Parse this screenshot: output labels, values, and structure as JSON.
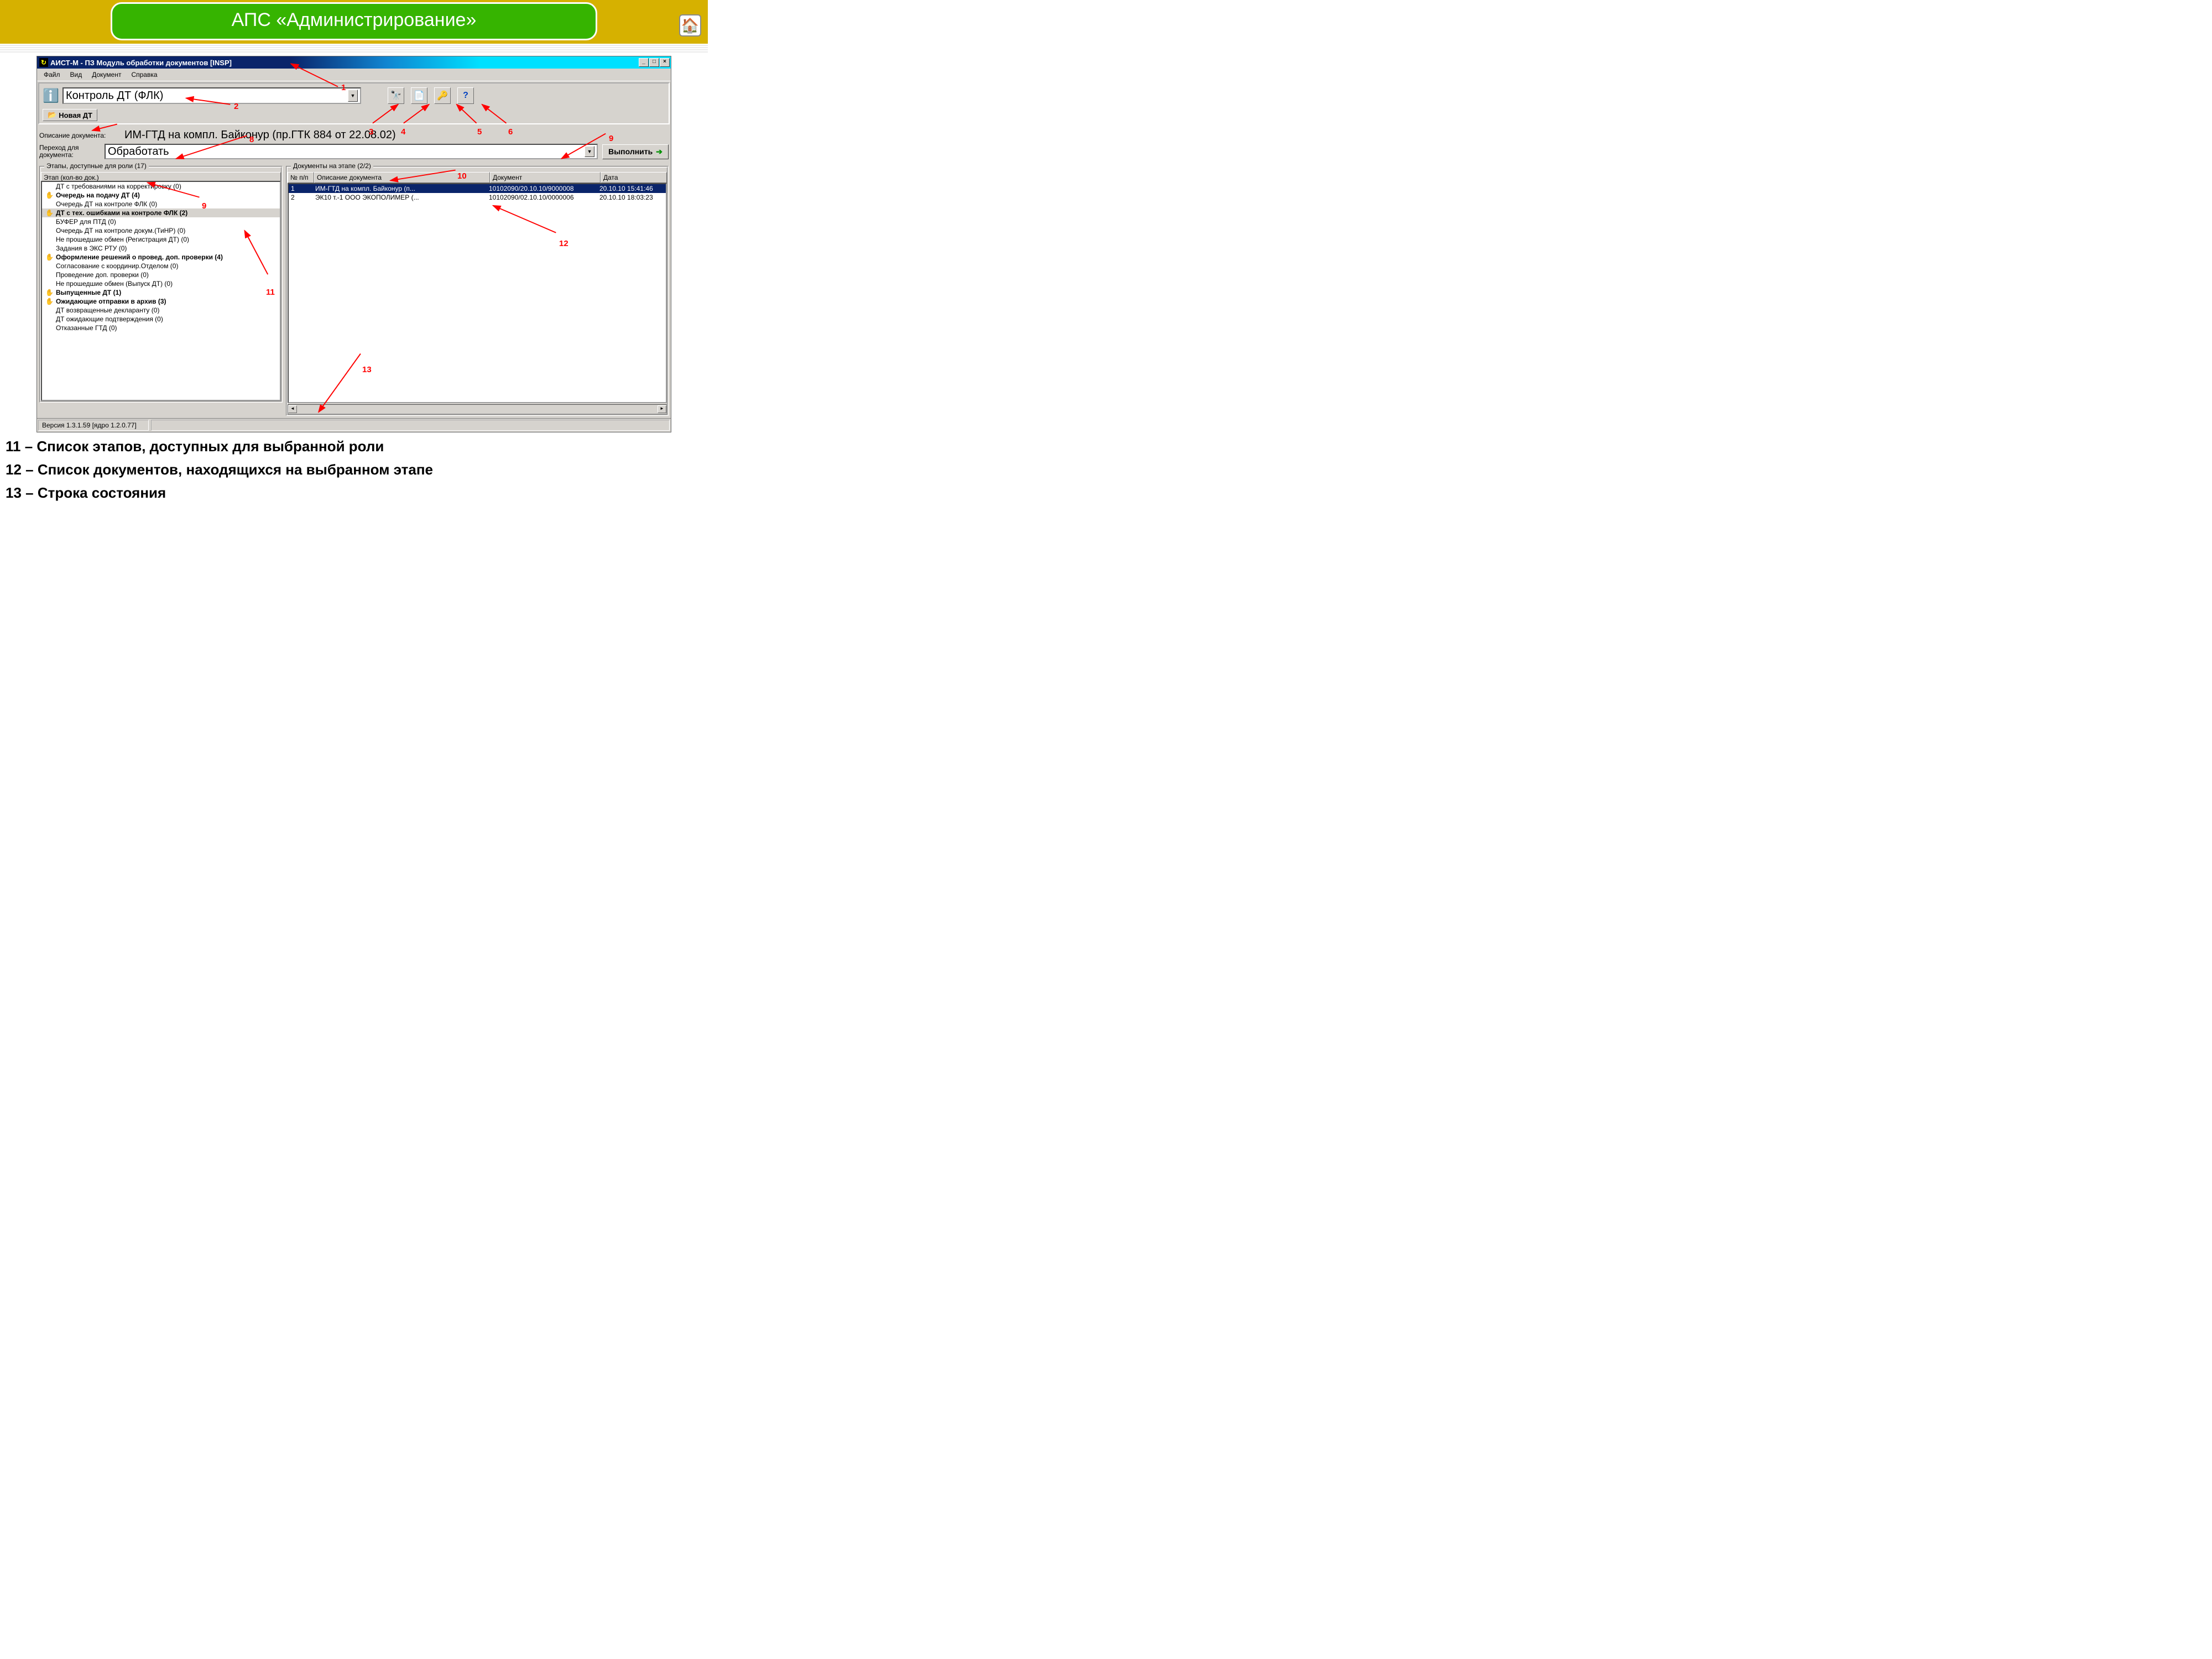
{
  "slide": {
    "title": "АПС «Администрирование»"
  },
  "window": {
    "title": "АИСТ-М - ПЗ Модуль обработки документов [INSP]"
  },
  "menu": [
    "Файл",
    "Вид",
    "Документ",
    "Справка"
  ],
  "toolbar": {
    "role_dropdown": "Контроль ДТ (ФЛК)",
    "new_dt": "Новая ДТ",
    "desc_label": "Описание документа:",
    "desc_value": "ИМ-ГТД на компл. Байконур (пр.ГТК 884 от 22.08.02)",
    "transition_label": "Переход для документа:",
    "transition_value": "Обработать",
    "exec_btn": "Выполнить"
  },
  "tool_icons": {
    "binoc": "🔭",
    "doc": "📄",
    "key": "🔑",
    "help": "?"
  },
  "left_pane": {
    "title": "Этапы, доступные для роли (17)",
    "header": "Этап (кол-во док.)",
    "items": [
      {
        "text": "ДТ с требованиями на корректировку (0)",
        "bold": false,
        "icon": false,
        "sel": false
      },
      {
        "text": "Очередь на подачу ДТ (4)",
        "bold": true,
        "icon": true,
        "sel": false
      },
      {
        "text": "Очередь ДТ на контроле ФЛК (0)",
        "bold": false,
        "icon": false,
        "sel": false
      },
      {
        "text": "ДТ с тех. ошибками на контроле ФЛК (2)",
        "bold": true,
        "icon": true,
        "sel": true
      },
      {
        "text": "БУФЕР для ПТД (0)",
        "bold": false,
        "icon": false,
        "sel": false
      },
      {
        "text": "Очередь ДТ на контроле докум.(ТиНР) (0)",
        "bold": false,
        "icon": false,
        "sel": false
      },
      {
        "text": "Не прошедшие обмен (Регистрация ДТ) (0)",
        "bold": false,
        "icon": false,
        "sel": false
      },
      {
        "text": "Задания в ЭКС РТУ (0)",
        "bold": false,
        "icon": false,
        "sel": false
      },
      {
        "text": "Оформление решений о провед. доп. проверки (4)",
        "bold": true,
        "icon": true,
        "sel": false
      },
      {
        "text": "Согласование с координир.Отделом (0)",
        "bold": false,
        "icon": false,
        "sel": false
      },
      {
        "text": "Проведение доп. проверки (0)",
        "bold": false,
        "icon": false,
        "sel": false
      },
      {
        "text": "Не прошедшие обмен (Выпуск ДТ) (0)",
        "bold": false,
        "icon": false,
        "sel": false
      },
      {
        "text": "Выпущенные ДТ (1)",
        "bold": true,
        "icon": true,
        "sel": false
      },
      {
        "text": "Ожидающие отправки в архив (3)",
        "bold": true,
        "icon": true,
        "sel": false
      },
      {
        "text": "ДТ возвращенные декларанту (0)",
        "bold": false,
        "icon": false,
        "sel": false
      },
      {
        "text": "ДТ ожидающие подтверждения (0)",
        "bold": false,
        "icon": false,
        "sel": false
      },
      {
        "text": "Отказанные ГТД (0)",
        "bold": false,
        "icon": false,
        "sel": false
      }
    ]
  },
  "right_pane": {
    "title": "Документы на этапе (2/2)",
    "headers": {
      "c1": "№ п/п",
      "c2": "Описание документа",
      "c3": "Документ",
      "c4": "Дата"
    },
    "rows": [
      {
        "c1": "1",
        "c2": "ИМ-ГТД на компл. Байконур (п...",
        "c3": "10102090/20.10.10/9000008",
        "c4": "20.10.10 15:41:46",
        "sel": true
      },
      {
        "c1": "2",
        "c2": "ЭК10 т.-1 ООО ЭКОПОЛИМЕР (...",
        "c3": "10102090/02.10.10/0000006",
        "c4": "20.10.10 18:03:23",
        "sel": false
      }
    ]
  },
  "status": "Версия 1.3.1.59 [ядро 1.2.0.77]",
  "annotations": {
    "n1": "1",
    "n2": "2",
    "n3": "3",
    "n4": "4",
    "n5": "5",
    "n6": "6",
    "n8": "8",
    "n9a": "9",
    "n9b": "9",
    "n10": "10",
    "n11": "11",
    "n12": "12",
    "n13": "13"
  },
  "footer": {
    "l1": "11 – Список этапов, доступных для выбранной роли",
    "l2": "12 – Список документов, находящихся на выбранном этапе",
    "l3": "13 – Строка состояния"
  }
}
